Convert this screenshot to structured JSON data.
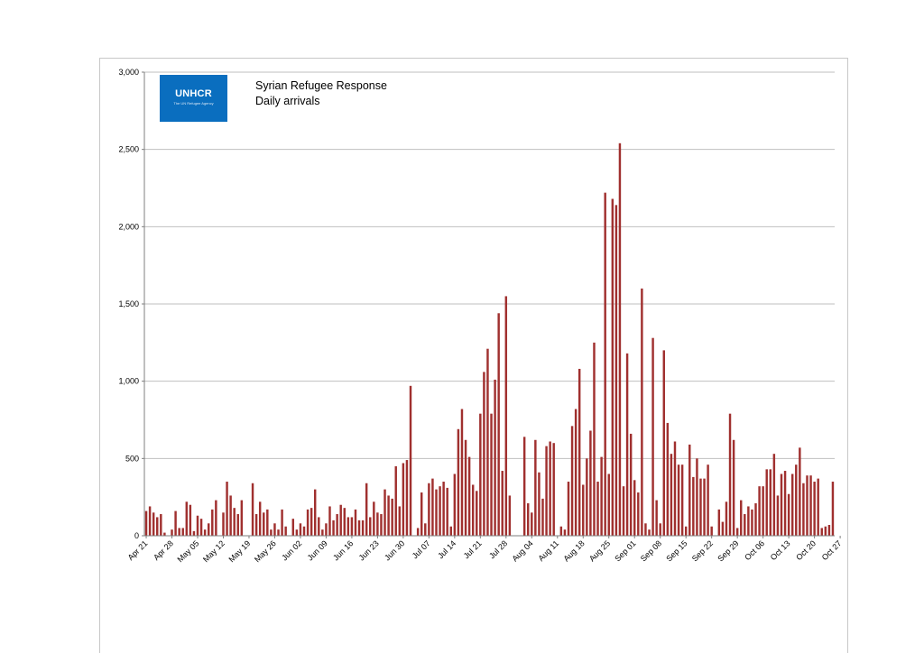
{
  "header": {
    "logo_text": "UNHCR",
    "logo_tagline": "The UN Refugee Agency",
    "title_line1": "Syrian Refugee Response",
    "title_line2": "Daily arrivals"
  },
  "colors": {
    "bar": "#a0302f",
    "grid": "#bfbfbf",
    "logo_bg": "#0a6ebf"
  },
  "chart_data": {
    "type": "bar",
    "title": "Syrian Refugee Response",
    "subtitle": "Daily arrivals",
    "xlabel": "",
    "ylabel": "",
    "ylim": [
      0,
      3000
    ],
    "y_ticks": [
      0,
      500,
      1000,
      1500,
      2000,
      2500,
      3000
    ],
    "y_tick_labels": [
      "0",
      "500",
      "1,000",
      "1,500",
      "2,000",
      "2,500",
      "3,000"
    ],
    "x_tick_labels": [
      "Apr 21",
      "Apr 28",
      "May 05",
      "May 12",
      "May 19",
      "May 26",
      "Jun 02",
      "Jun 09",
      "Jun 16",
      "Jun 23",
      "Jun 30",
      "Jul 07",
      "Jul 14",
      "Jul 21",
      "Jul 28",
      "Aug 04",
      "Aug 11",
      "Aug 18",
      "Aug 25",
      "Sep 01",
      "Sep 08",
      "Sep 15",
      "Sep 22",
      "Sep 29",
      "Oct 06",
      "Oct 13",
      "Oct 20",
      "Oct 27"
    ],
    "grid": true,
    "legend": "none",
    "values": [
      160,
      190,
      150,
      120,
      140,
      20,
      0,
      40,
      160,
      50,
      50,
      220,
      200,
      30,
      130,
      110,
      40,
      80,
      170,
      230,
      0,
      150,
      350,
      260,
      180,
      140,
      230,
      0,
      0,
      340,
      140,
      220,
      150,
      170,
      40,
      80,
      40,
      170,
      60,
      0,
      110,
      40,
      80,
      60,
      170,
      180,
      300,
      120,
      40,
      80,
      190,
      100,
      140,
      200,
      180,
      120,
      120,
      170,
      100,
      100,
      340,
      120,
      220,
      150,
      140,
      300,
      260,
      240,
      450,
      190,
      470,
      490,
      970,
      0,
      50,
      280,
      80,
      340,
      370,
      300,
      320,
      350,
      310,
      60,
      400,
      690,
      820,
      620,
      510,
      330,
      290,
      790,
      1060,
      1210,
      790,
      1010,
      1440,
      420,
      1550,
      260,
      0,
      0,
      0,
      640,
      210,
      150,
      620,
      410,
      240,
      580,
      610,
      600,
      0,
      60,
      40,
      350,
      710,
      820,
      1080,
      330,
      500,
      680,
      1250,
      350,
      510,
      2220,
      400,
      2180,
      2140,
      2540,
      320,
      1180,
      660,
      360,
      280,
      1600,
      80,
      40,
      1280,
      230,
      80,
      1200,
      730,
      530,
      610,
      460,
      460,
      60,
      590,
      380,
      500,
      370,
      370,
      460,
      60,
      0,
      170,
      90,
      220,
      790,
      620,
      50,
      230,
      140,
      190,
      170,
      210,
      320,
      320,
      430,
      430,
      530,
      260,
      400,
      420,
      270,
      400,
      460,
      570,
      340,
      390,
      390,
      350,
      370,
      50,
      60,
      70,
      350
    ]
  }
}
